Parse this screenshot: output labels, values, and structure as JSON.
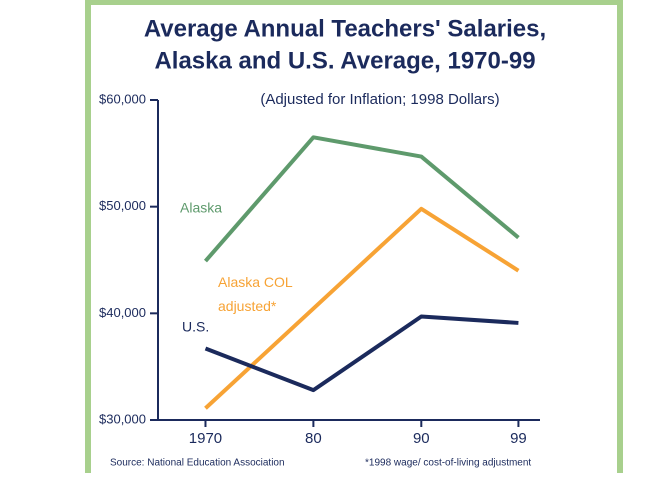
{
  "chart_data": {
    "type": "line",
    "title": [
      "Average Annual Teachers' Salaries,",
      "Alaska and U.S. Average, 1970-99"
    ],
    "subtitle": "(Adjusted for Inflation; 1998 Dollars)",
    "x": [
      1970,
      1980,
      1990,
      1999
    ],
    "series": [
      {
        "name": "Alaska",
        "color": "#5e9a6c",
        "values": [
          44900,
          56500,
          54700,
          47100
        ]
      },
      {
        "name": "Alaska COL adjusted*",
        "color": "#f7a335",
        "values": [
          31100,
          40450,
          49800,
          44000
        ]
      },
      {
        "name": "U.S.",
        "color": "#1b2a5c",
        "values": [
          36700,
          32800,
          39700,
          39100
        ]
      }
    ],
    "xlim": [
      1965.6,
      2001
    ],
    "xticks": [
      1970,
      {
        "value": 1980,
        "label": "80"
      },
      {
        "value": 1990,
        "label": "90"
      },
      {
        "value": 1999,
        "label": "99"
      }
    ],
    "ylim": [
      30000,
      60000
    ],
    "yticks": [
      {
        "value": 30000,
        "label": "$30,000"
      },
      {
        "value": 40000,
        "label": "$40,000"
      },
      {
        "value": 50000,
        "label": "$50,000"
      },
      {
        "value": 60000,
        "label": "$60,000"
      }
    ],
    "source": "Source: National Education Association",
    "footnote": "*1998 wage/ cost-of-living adjustment"
  }
}
